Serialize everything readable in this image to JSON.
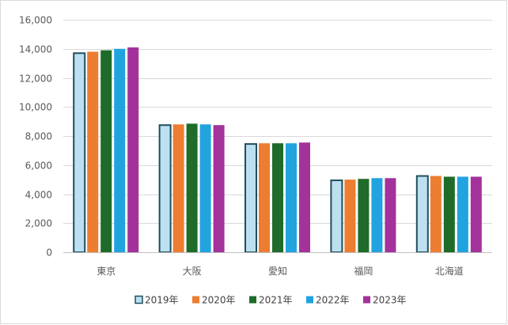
{
  "chart_data": {
    "type": "bar",
    "title": "",
    "xlabel": "",
    "ylabel": "",
    "ylim": [
      0,
      16000
    ],
    "yticks": [
      0,
      2000,
      4000,
      6000,
      8000,
      10000,
      12000,
      14000,
      16000
    ],
    "ytick_labels": [
      "0",
      "2,000",
      "4,000",
      "6,000",
      "8,000",
      "10,000",
      "12,000",
      "14,000",
      "16,000"
    ],
    "grid": "horizontal",
    "legend_position": "bottom",
    "categories": [
      "東京",
      "大阪",
      "愛知",
      "福岡",
      "北海道"
    ],
    "series": [
      {
        "name": "2019年",
        "color": "#bde0f0",
        "stroke": "#1f4e5f",
        "values": [
          13700,
          8750,
          7450,
          4950,
          5250
        ]
      },
      {
        "name": "2020年",
        "color": "#ed7d31",
        "values": [
          13800,
          8800,
          7500,
          5000,
          5250
        ]
      },
      {
        "name": "2021年",
        "color": "#1e6b2a",
        "values": [
          13900,
          8850,
          7500,
          5050,
          5200
        ]
      },
      {
        "name": "2022年",
        "color": "#21a3e0",
        "values": [
          14000,
          8800,
          7500,
          5100,
          5200
        ]
      },
      {
        "name": "2023年",
        "color": "#a3329b",
        "values": [
          14100,
          8750,
          7550,
          5100,
          5200
        ]
      }
    ]
  }
}
